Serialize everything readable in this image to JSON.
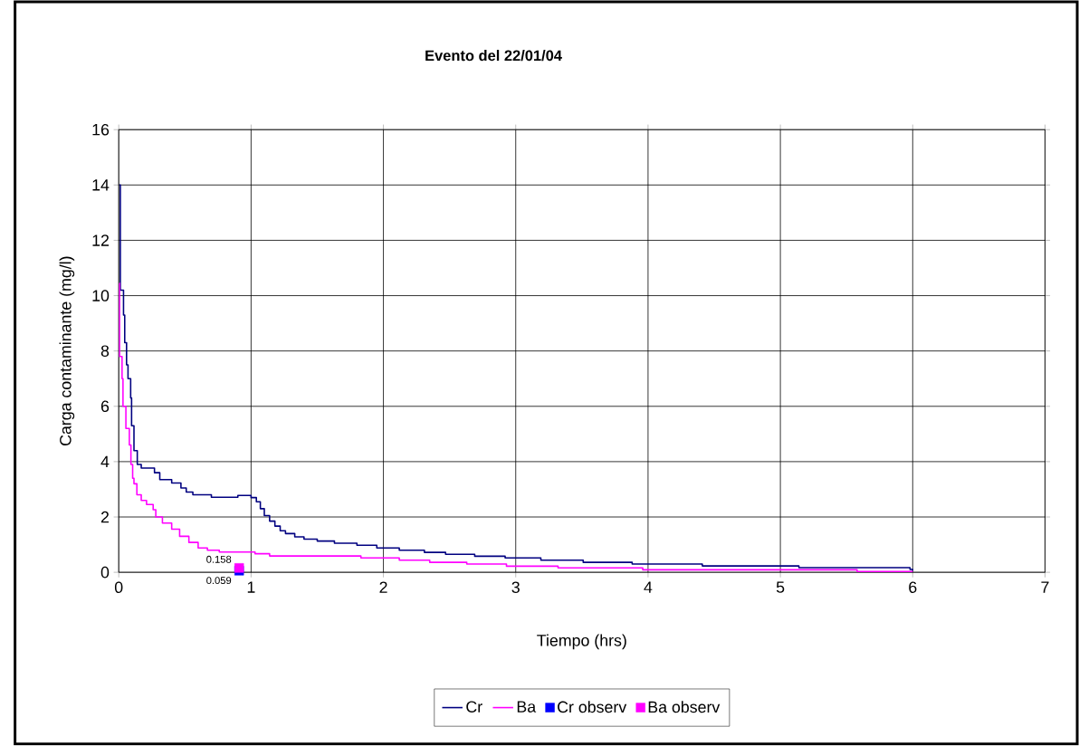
{
  "chart_data": {
    "type": "step",
    "title": "Evento del 22/01/04",
    "xlabel": "Tiempo (hrs)",
    "ylabel": "Carga contaminante (mg/l)",
    "xlim": [
      0,
      7
    ],
    "ylim": [
      0,
      16
    ],
    "xticks": [
      0,
      1,
      2,
      3,
      4,
      5,
      6,
      7
    ],
    "yticks": [
      0,
      2,
      4,
      6,
      8,
      10,
      12,
      14,
      16
    ],
    "grid": true,
    "legend": "bottom",
    "series": [
      {
        "name": "Cr",
        "color": "#000080",
        "marker": "none",
        "x": [
          0.005,
          0.012,
          0.036,
          0.045,
          0.059,
          0.07,
          0.09,
          0.097,
          0.115,
          0.14,
          0.17,
          0.27,
          0.31,
          0.4,
          0.47,
          0.51,
          0.56,
          0.7,
          0.9,
          1.0,
          1.04,
          1.07,
          1.1,
          1.14,
          1.18,
          1.22,
          1.26,
          1.33,
          1.4,
          1.5,
          1.63,
          1.8,
          1.95,
          2.12,
          2.31,
          2.47,
          2.69,
          2.92,
          3.19,
          3.51,
          3.88,
          4.41,
          5.14,
          5.98,
          6.0
        ],
        "values": [
          14.0,
          10.2,
          9.3,
          8.3,
          7.5,
          7.0,
          6.3,
          5.3,
          4.4,
          3.9,
          3.77,
          3.6,
          3.35,
          3.23,
          3.05,
          2.9,
          2.8,
          2.71,
          2.78,
          2.7,
          2.55,
          2.3,
          2.05,
          1.85,
          1.67,
          1.5,
          1.4,
          1.28,
          1.2,
          1.13,
          1.05,
          0.98,
          0.88,
          0.8,
          0.72,
          0.65,
          0.58,
          0.52,
          0.44,
          0.36,
          0.3,
          0.23,
          0.17,
          0.1,
          0.05
        ]
      },
      {
        "name": "Ba",
        "color": "#ff00ff",
        "marker": "none",
        "x": [
          0.005,
          0.006,
          0.025,
          0.032,
          0.054,
          0.08,
          0.092,
          0.105,
          0.115,
          0.137,
          0.17,
          0.21,
          0.26,
          0.28,
          0.33,
          0.4,
          0.46,
          0.53,
          0.6,
          0.67,
          0.76,
          1.03,
          1.14,
          1.83,
          2.12,
          2.35,
          2.63,
          2.93,
          3.32,
          3.96,
          5.58,
          6.0
        ],
        "values": [
          10.45,
          7.8,
          7.0,
          6.0,
          5.2,
          4.6,
          3.9,
          3.4,
          3.2,
          2.8,
          2.6,
          2.45,
          2.26,
          2.0,
          1.78,
          1.56,
          1.3,
          1.08,
          0.88,
          0.8,
          0.73,
          0.67,
          0.59,
          0.52,
          0.44,
          0.36,
          0.3,
          0.22,
          0.16,
          0.09,
          0.03,
          0.03
        ]
      },
      {
        "name": "Cr observ",
        "type": "scatter",
        "marker": "square",
        "color": "#0000ff",
        "x": [
          0.91
        ],
        "values": [
          0.059
        ],
        "value_labels": [
          "0.059"
        ]
      },
      {
        "name": "Ba observ",
        "type": "scatter",
        "marker": "square",
        "color": "#ff00ff",
        "x": [
          0.91
        ],
        "values": [
          0.158
        ],
        "value_labels": [
          "0.158"
        ]
      }
    ]
  }
}
